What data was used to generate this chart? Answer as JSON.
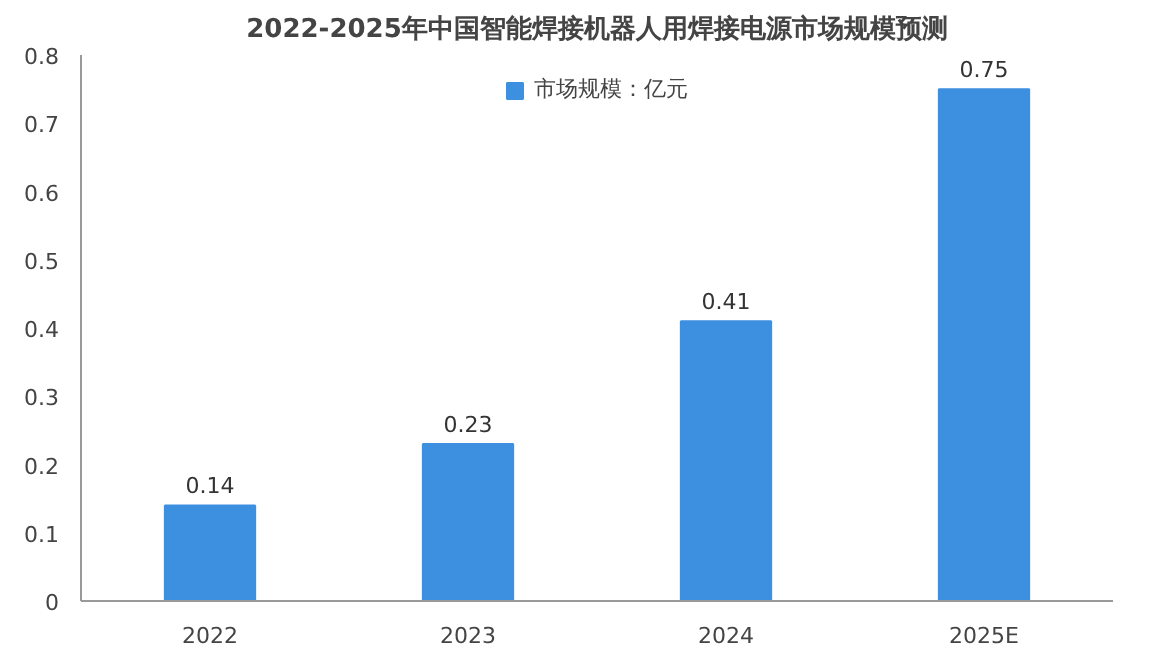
{
  "chart_data": {
    "type": "bar",
    "title": "2022-2025年中国智能焊接机器人用焊接电源市场规模预测",
    "categories": [
      "2022",
      "2023",
      "2024",
      "2025E"
    ],
    "series": [
      {
        "name": "市场规模：亿元",
        "color": "#3d8fe0",
        "values": [
          0.14,
          0.23,
          0.41,
          0.75
        ]
      }
    ],
    "ylim": [
      0,
      0.8
    ],
    "yticks": [
      0,
      0.1,
      0.2,
      0.3,
      0.4,
      0.5,
      0.6,
      0.7,
      0.8
    ],
    "grid": false,
    "legend": "top",
    "data_labels": true
  }
}
